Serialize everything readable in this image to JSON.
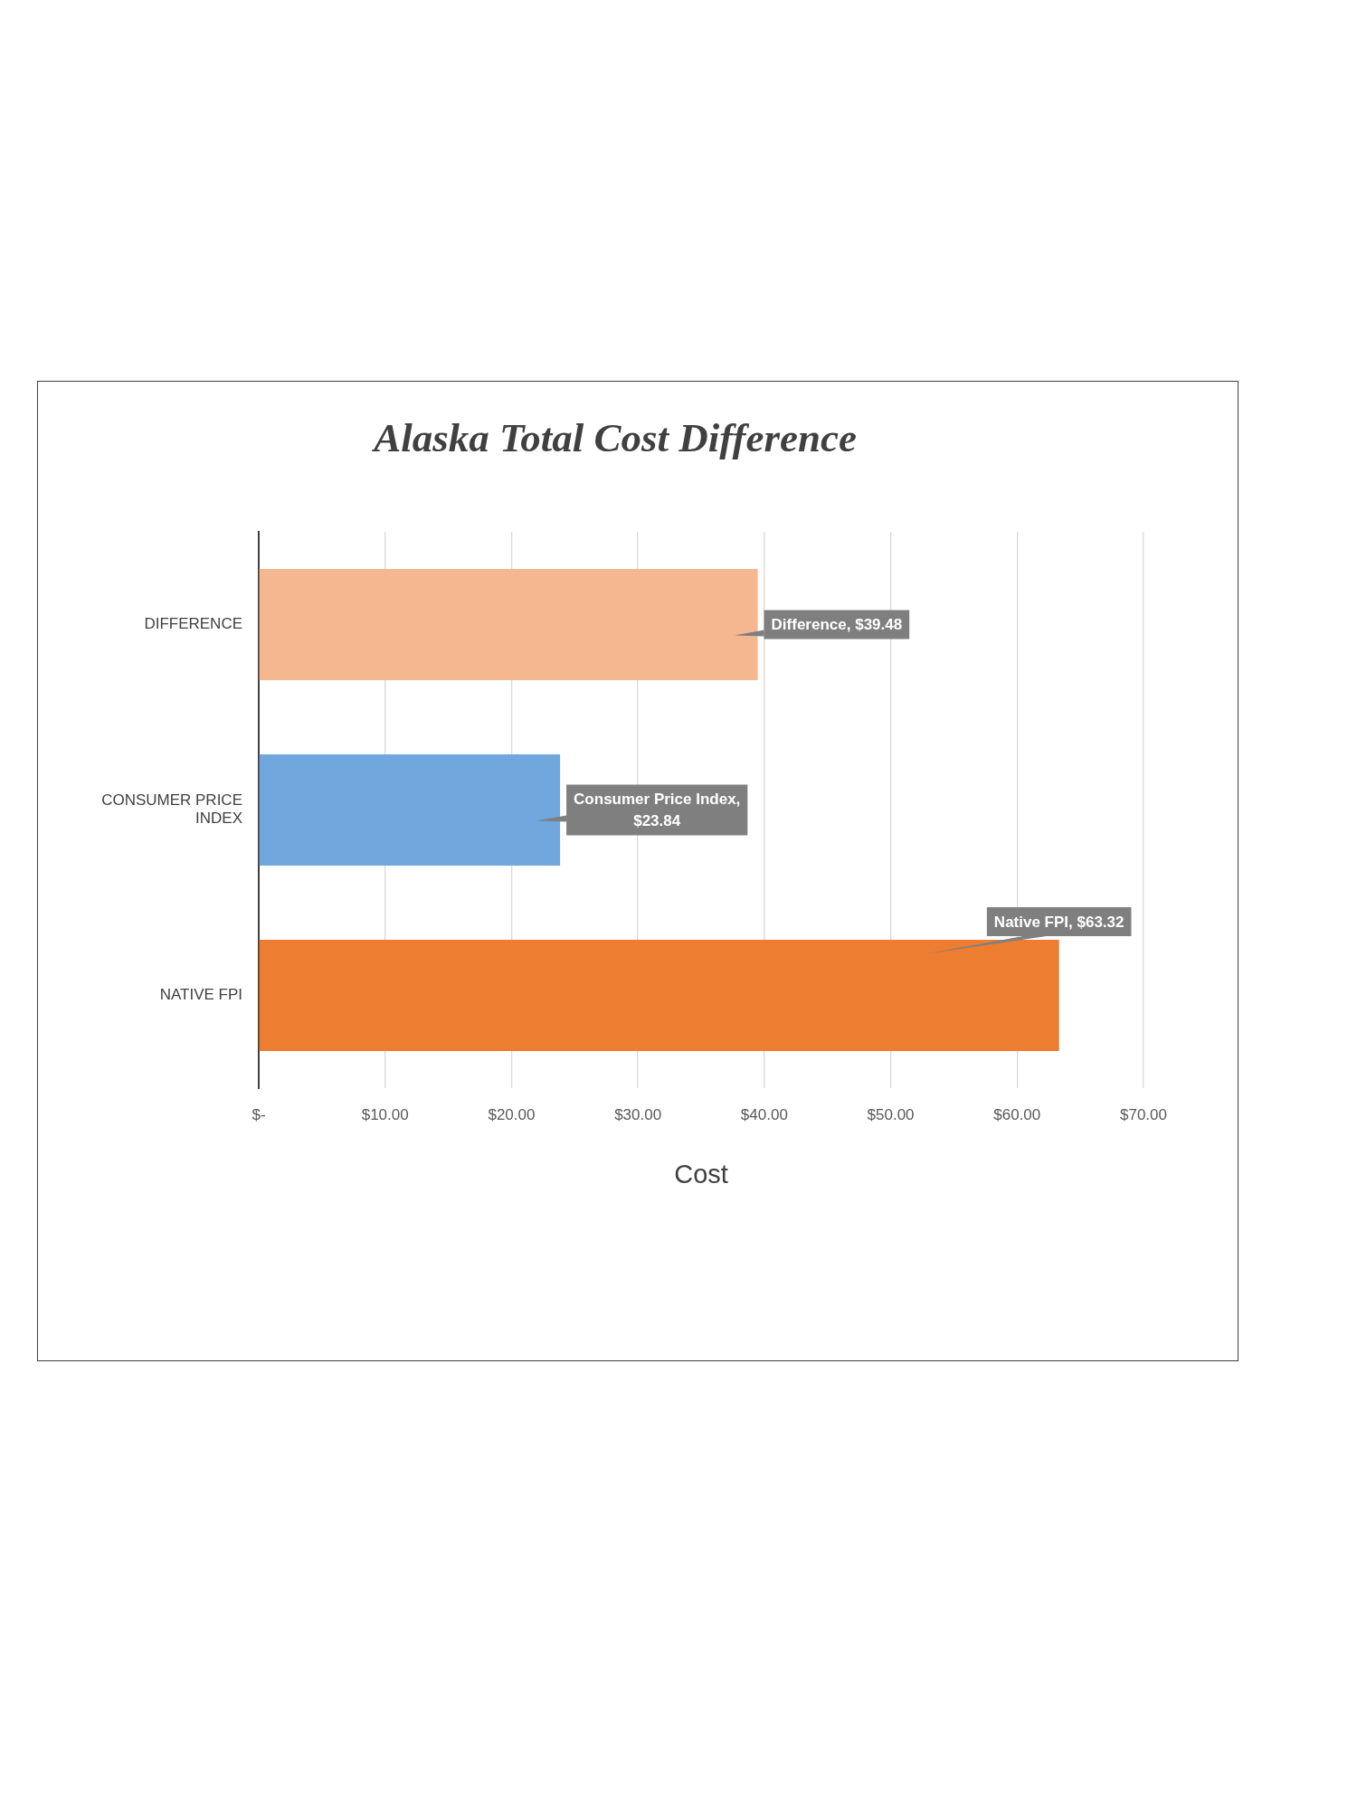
{
  "chart_data": {
    "type": "bar",
    "orientation": "horizontal",
    "title": "Alaska Total Cost Difference",
    "xlabel": "Cost",
    "categories": [
      "DIFFERENCE",
      "CONSUMER PRICE INDEX",
      "NATIVE FPI"
    ],
    "values": [
      39.48,
      23.84,
      63.32
    ],
    "colors": [
      "#f5b78f",
      "#70a7dc",
      "#ed7d31"
    ],
    "value_labels": [
      "Difference, $39.48",
      "Consumer Price Index, $23.84",
      "Native FPI, $63.32"
    ],
    "xlim": [
      0,
      70
    ],
    "xticks": [
      {
        "value": 0,
        "label": "$-"
      },
      {
        "value": 10,
        "label": "$10.00"
      },
      {
        "value": 20,
        "label": "$20.00"
      },
      {
        "value": 30,
        "label": "$30.00"
      },
      {
        "value": 40,
        "label": "$40.00"
      },
      {
        "value": 50,
        "label": "$50.00"
      },
      {
        "value": 60,
        "label": "$60.00"
      },
      {
        "value": 70,
        "label": "$70.00"
      }
    ],
    "grid": "x",
    "legend": false
  }
}
